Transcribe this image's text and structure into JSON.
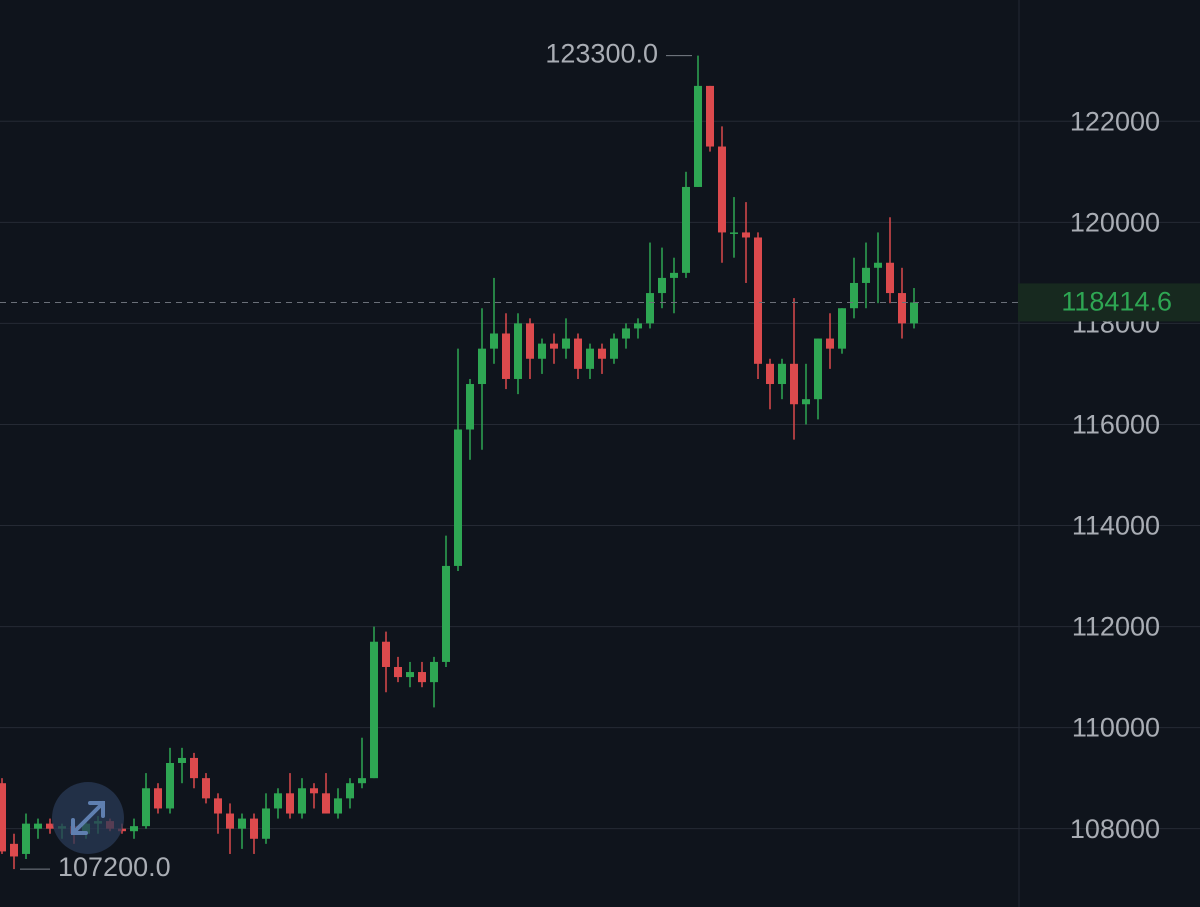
{
  "chart_data": {
    "type": "candlestick",
    "up_color": "#2ea653",
    "down_color": "#dc4a4d",
    "ylim": [
      106450,
      124400
    ],
    "yticks": [
      108000,
      110000,
      112000,
      114000,
      116000,
      118000,
      120000,
      122000
    ],
    "grid": true,
    "open": [
      108900,
      107700,
      107500,
      108000,
      108100,
      108000,
      108050,
      107900,
      108100,
      108150,
      108000,
      107950,
      108050,
      108800,
      108400,
      109300,
      109400,
      109000,
      108600,
      108300,
      108000,
      108200,
      107800,
      108400,
      108700,
      108300,
      108800,
      108700,
      108300,
      108600,
      108900,
      109000,
      111700,
      111200,
      111000,
      111100,
      110900,
      111300,
      113200,
      115900,
      116800,
      117500,
      117800,
      116900,
      118000,
      117300,
      117600,
      117500,
      117700,
      117100,
      117500,
      117300,
      117700,
      117900,
      118000,
      118600,
      118900,
      119000,
      120700,
      122700,
      121500,
      119800,
      119800,
      119700,
      117200,
      116800,
      117200,
      116400,
      116500,
      117700,
      117500,
      118300,
      118800,
      119100,
      119200,
      118600,
      118000
    ],
    "high": [
      109000,
      107900,
      108300,
      108200,
      108200,
      108100,
      108200,
      108200,
      108250,
      108200,
      108100,
      108200,
      109100,
      108900,
      109600,
      109600,
      109500,
      109100,
      108700,
      108500,
      108300,
      108300,
      108700,
      108800,
      109100,
      109000,
      108900,
      109100,
      108800,
      109000,
      109800,
      112000,
      111900,
      111400,
      111300,
      111300,
      111400,
      113800,
      117500,
      116900,
      118300,
      118900,
      118200,
      118200,
      118100,
      117700,
      117800,
      118100,
      117800,
      117600,
      117600,
      117800,
      118000,
      118100,
      119600,
      119500,
      119300,
      121000,
      123300,
      122700,
      121900,
      120500,
      120400,
      119800,
      117300,
      117300,
      118500,
      117200,
      117700,
      118200,
      118300,
      119300,
      119600,
      119800,
      120100,
      119100,
      118700
    ],
    "low": [
      107500,
      107200,
      107400,
      107800,
      107900,
      107800,
      107700,
      107800,
      107900,
      107950,
      107900,
      107800,
      108000,
      108300,
      108300,
      108900,
      108800,
      108500,
      107900,
      107500,
      107600,
      107500,
      107700,
      108200,
      108200,
      108200,
      108400,
      108300,
      108200,
      108400,
      108800,
      109000,
      110700,
      110900,
      110800,
      110800,
      110400,
      111200,
      113100,
      115300,
      115500,
      117200,
      116700,
      116600,
      116900,
      117000,
      117200,
      117300,
      116900,
      116900,
      117000,
      117200,
      117500,
      117700,
      117900,
      118300,
      118200,
      118900,
      120700,
      121400,
      119200,
      119300,
      118800,
      116900,
      116300,
      116500,
      115700,
      116000,
      116100,
      117100,
      117400,
      118100,
      118300,
      118400,
      118400,
      117700,
      117900
    ],
    "close": [
      107550,
      107450,
      108100,
      108100,
      108000,
      108050,
      107900,
      108100,
      108150,
      108000,
      107950,
      108050,
      108800,
      108400,
      109300,
      109400,
      109000,
      108600,
      108300,
      108000,
      108200,
      107800,
      108400,
      108700,
      108300,
      108800,
      108700,
      108300,
      108600,
      108900,
      109000,
      111700,
      111200,
      111000,
      111100,
      110900,
      111300,
      113200,
      115900,
      116800,
      117500,
      117800,
      116900,
      118000,
      117300,
      117600,
      117500,
      117700,
      117100,
      117500,
      117300,
      117700,
      117900,
      118000,
      118600,
      118900,
      119000,
      120700,
      122700,
      121500,
      119800,
      119800,
      119700,
      117200,
      116800,
      117200,
      116400,
      116500,
      117700,
      117500,
      118300,
      118800,
      119100,
      119200,
      118600,
      118000,
      118414.6
    ],
    "annotations": [
      {
        "value": 123300,
        "label": "123300.0"
      },
      {
        "value": 107200,
        "label": "107200.0"
      }
    ],
    "last_price": 118414.6
  }
}
